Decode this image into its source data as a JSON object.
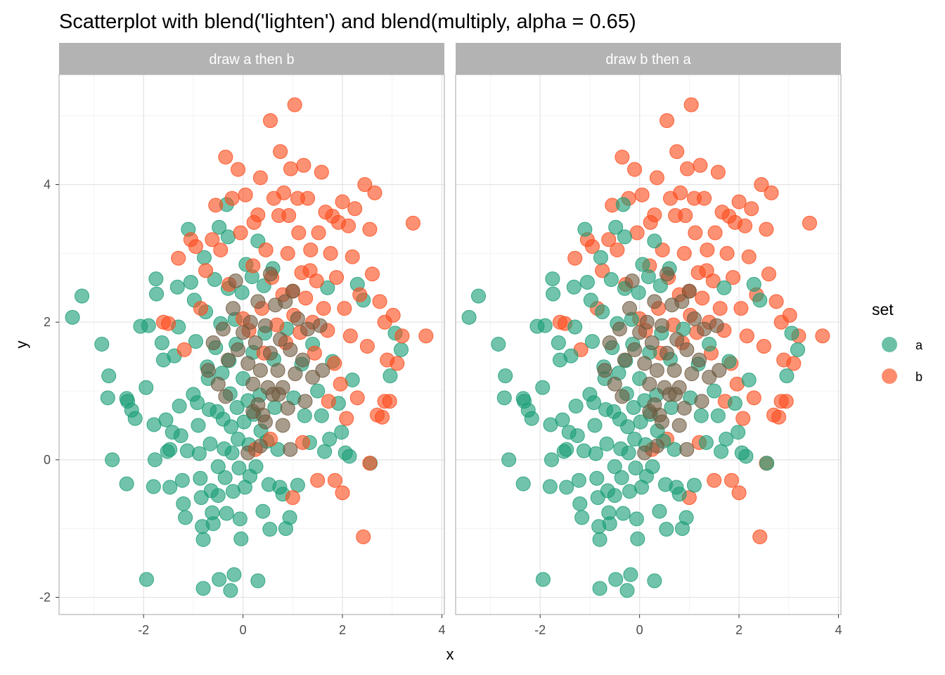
{
  "chart_data": {
    "type": "scatter",
    "title": "Scatterplot with blend('lighten') and blend(multiply, alpha = 0.65)",
    "xlabel": "x",
    "ylabel": "y",
    "xlim": [
      -3.7,
      4.05
    ],
    "ylim": [
      -2.25,
      5.6
    ],
    "x_ticks": [
      -2,
      0,
      2,
      4
    ],
    "y_ticks": [
      -2,
      0,
      2,
      4
    ],
    "grid": true,
    "facets": [
      "draw a then b",
      "draw b then a"
    ],
    "legend": {
      "title": "set",
      "position": "right",
      "entries": [
        {
          "label": "a",
          "color": "#1B9E77"
        },
        {
          "label": "b",
          "color": "#FC4E1F"
        }
      ]
    },
    "colors": {
      "a": "#1B9E77",
      "b": "#FC4E1F",
      "overlap": "#6E5A3F"
    },
    "series": [
      {
        "name": "a",
        "points": [
          [
            -3.43,
            2.07
          ],
          [
            -3.24,
            2.38
          ],
          [
            -2.84,
            1.68
          ],
          [
            -2.7,
            1.22
          ],
          [
            -2.72,
            0.9
          ],
          [
            -2.63,
            0.0
          ],
          [
            -2.34,
            0.89
          ],
          [
            -2.32,
            0.85
          ],
          [
            -2.24,
            0.72
          ],
          [
            -2.17,
            0.6
          ],
          [
            -2.34,
            -0.35
          ],
          [
            -2.06,
            1.94
          ],
          [
            -1.95,
            1.05
          ],
          [
            -1.94,
            -1.74
          ],
          [
            -1.9,
            1.95
          ],
          [
            -1.79,
            0.51
          ],
          [
            -1.77,
            0.0
          ],
          [
            -1.8,
            -0.39
          ],
          [
            -1.75,
            2.63
          ],
          [
            -1.74,
            2.41
          ],
          [
            -1.63,
            1.7
          ],
          [
            -1.6,
            1.45
          ],
          [
            -1.55,
            0.58
          ],
          [
            -1.52,
            0.12
          ],
          [
            -1.47,
            0.15
          ],
          [
            -1.47,
            -0.4
          ],
          [
            -1.42,
            0.4
          ],
          [
            -1.38,
            1.51
          ],
          [
            -1.32,
            2.51
          ],
          [
            -1.3,
            1.93
          ],
          [
            -1.28,
            0.78
          ],
          [
            -1.25,
            0.35
          ],
          [
            -1.22,
            -0.3
          ],
          [
            -1.2,
            -0.64
          ],
          [
            -1.16,
            -0.84
          ],
          [
            -1.12,
            0.13
          ],
          [
            -1.1,
            3.35
          ],
          [
            -1.05,
            2.58
          ],
          [
            -1.0,
            0.95
          ],
          [
            -0.98,
            2.32
          ],
          [
            -0.95,
            1.72
          ],
          [
            -0.92,
            0.83
          ],
          [
            -0.9,
            0.5
          ],
          [
            -0.88,
            0.09
          ],
          [
            -0.86,
            -0.27
          ],
          [
            -0.84,
            -0.55
          ],
          [
            -0.82,
            -0.97
          ],
          [
            -0.8,
            -1.16
          ],
          [
            -0.8,
            -1.87
          ],
          [
            -0.78,
            2.94
          ],
          [
            -0.75,
            2.15
          ],
          [
            -0.72,
            1.35
          ],
          [
            -0.7,
            1.18
          ],
          [
            -0.68,
            0.73
          ],
          [
            -0.66,
            0.23
          ],
          [
            -0.64,
            -0.45
          ],
          [
            -0.62,
            -0.77
          ],
          [
            -0.6,
            -0.93
          ],
          [
            -0.57,
            2.62
          ],
          [
            -0.55,
            1.63
          ],
          [
            -0.52,
            0.7
          ],
          [
            -0.5,
            -0.1
          ],
          [
            -0.5,
            -0.52
          ],
          [
            -0.48,
            3.38
          ],
          [
            -0.48,
            -1.74
          ],
          [
            -0.45,
            1.98
          ],
          [
            -0.42,
            1.26
          ],
          [
            -0.4,
            0.59
          ],
          [
            -0.38,
            0.16
          ],
          [
            -0.36,
            -0.26
          ],
          [
            -0.33,
            3.71
          ],
          [
            -0.33,
            -0.78
          ],
          [
            -0.3,
            3.24
          ],
          [
            -0.3,
            2.49
          ],
          [
            -0.28,
            1.44
          ],
          [
            -0.26,
            0.96
          ],
          [
            -0.25,
            -1.9
          ],
          [
            -0.24,
            0.48
          ],
          [
            -0.22,
            0.1
          ],
          [
            -0.2,
            -0.46
          ],
          [
            -0.18,
            -1.67
          ],
          [
            -0.16,
            2.04
          ],
          [
            -0.14,
            1.68
          ],
          [
            -0.12,
            0.76
          ],
          [
            -0.1,
            0.3
          ],
          [
            -0.08,
            -0.12
          ],
          [
            -0.06,
            -0.86
          ],
          [
            -0.04,
            -1.15
          ],
          [
            -0.02,
            2.43
          ],
          [
            0.0,
            1.18
          ],
          [
            0.02,
            0.55
          ],
          [
            0.04,
            -0.4
          ],
          [
            0.06,
            2.84
          ],
          [
            0.1,
            0.86
          ],
          [
            0.12,
            0.22
          ],
          [
            0.14,
            -0.24
          ],
          [
            0.18,
            2.66
          ],
          [
            0.2,
            1.56
          ],
          [
            0.22,
            0.66
          ],
          [
            0.26,
            -0.1
          ],
          [
            0.3,
            3.18
          ],
          [
            0.3,
            -1.76
          ],
          [
            0.34,
            0.94
          ],
          [
            0.36,
            0.42
          ],
          [
            0.4,
            -0.75
          ],
          [
            0.42,
            2.53
          ],
          [
            0.44,
            1.84
          ],
          [
            0.48,
            0.27
          ],
          [
            0.52,
            -0.36
          ],
          [
            0.54,
            -1.01
          ],
          [
            0.6,
            2.78
          ],
          [
            0.62,
            1.46
          ],
          [
            0.64,
            0.76
          ],
          [
            0.7,
            0.15
          ],
          [
            0.74,
            -0.4
          ],
          [
            0.8,
            -0.5
          ],
          [
            0.86,
            -1.0
          ],
          [
            0.88,
            1.9
          ],
          [
            0.94,
            -0.84
          ],
          [
            1.02,
            0.9
          ],
          [
            1.1,
            -0.37
          ],
          [
            1.18,
            1.39
          ],
          [
            1.24,
            0.64
          ],
          [
            1.34,
            0.25
          ],
          [
            1.4,
            1.68
          ],
          [
            1.5,
            1.0
          ],
          [
            1.58,
            0.64
          ],
          [
            1.64,
            0.12
          ],
          [
            1.74,
            0.3
          ],
          [
            1.8,
            1.43
          ],
          [
            1.92,
            0.82
          ],
          [
            1.98,
            0.4
          ],
          [
            2.06,
            0.1
          ],
          [
            2.14,
            0.05
          ],
          [
            2.2,
            1.16
          ],
          [
            2.3,
            2.55
          ],
          [
            2.42,
            2.32
          ],
          [
            2.56,
            -0.05
          ],
          [
            2.96,
            1.22
          ],
          [
            3.06,
            1.84
          ],
          [
            3.18,
            1.6
          ],
          [
            1.7,
            2.5
          ]
        ]
      },
      {
        "name": "b",
        "points": [
          [
            -1.6,
            2.0
          ],
          [
            -1.5,
            1.98
          ],
          [
            -1.3,
            2.93
          ],
          [
            -1.18,
            1.6
          ],
          [
            -1.05,
            3.2
          ],
          [
            -0.95,
            3.1
          ],
          [
            -0.85,
            2.2
          ],
          [
            -0.75,
            2.75
          ],
          [
            -0.62,
            3.2
          ],
          [
            -0.55,
            3.7
          ],
          [
            -0.45,
            3.05
          ],
          [
            -0.35,
            4.4
          ],
          [
            -0.28,
            2.55
          ],
          [
            -0.22,
            3.8
          ],
          [
            -0.1,
            4.22
          ],
          [
            -0.05,
            3.3
          ],
          [
            0.0,
            2.05
          ],
          [
            0.05,
            3.85
          ],
          [
            0.12,
            1.88
          ],
          [
            0.2,
            2.82
          ],
          [
            0.22,
            3.45
          ],
          [
            0.3,
            3.56
          ],
          [
            0.35,
            4.1
          ],
          [
            0.38,
            2.2
          ],
          [
            0.42,
            1.55
          ],
          [
            0.46,
            3.05
          ],
          [
            0.55,
            4.93
          ],
          [
            0.58,
            2.65
          ],
          [
            0.62,
            3.8
          ],
          [
            0.68,
            1.96
          ],
          [
            0.72,
            3.55
          ],
          [
            0.75,
            4.48
          ],
          [
            0.8,
            2.4
          ],
          [
            0.82,
            3.88
          ],
          [
            0.86,
            1.7
          ],
          [
            0.9,
            3.0
          ],
          [
            0.92,
            3.55
          ],
          [
            0.96,
            4.23
          ],
          [
            1.0,
            2.45
          ],
          [
            1.02,
            2.1
          ],
          [
            1.04,
            5.16
          ],
          [
            1.1,
            3.8
          ],
          [
            1.12,
            3.3
          ],
          [
            1.15,
            1.85
          ],
          [
            1.18,
            2.72
          ],
          [
            1.22,
            4.28
          ],
          [
            1.26,
            2.35
          ],
          [
            1.3,
            3.8
          ],
          [
            1.36,
            3.05
          ],
          [
            1.4,
            2.0
          ],
          [
            1.44,
            1.55
          ],
          [
            1.48,
            2.6
          ],
          [
            1.52,
            3.3
          ],
          [
            1.58,
            4.18
          ],
          [
            1.62,
            2.2
          ],
          [
            1.66,
            3.6
          ],
          [
            1.7,
            1.88
          ],
          [
            1.72,
            0.85
          ],
          [
            1.76,
            3.0
          ],
          [
            1.8,
            3.54
          ],
          [
            1.84,
            1.4
          ],
          [
            1.88,
            2.65
          ],
          [
            1.92,
            3.45
          ],
          [
            1.96,
            1.1
          ],
          [
            2.0,
            3.75
          ],
          [
            2.04,
            2.2
          ],
          [
            2.08,
            0.6
          ],
          [
            2.12,
            3.4
          ],
          [
            2.16,
            1.8
          ],
          [
            2.2,
            2.95
          ],
          [
            2.25,
            3.65
          ],
          [
            2.3,
            0.9
          ],
          [
            2.35,
            2.4
          ],
          [
            2.42,
            -1.12
          ],
          [
            2.45,
            4.0
          ],
          [
            2.5,
            1.65
          ],
          [
            2.55,
            3.35
          ],
          [
            2.6,
            2.7
          ],
          [
            2.65,
            3.88
          ],
          [
            2.7,
            0.65
          ],
          [
            2.75,
            2.3
          ],
          [
            2.8,
            0.62
          ],
          [
            2.85,
            2.0
          ],
          [
            2.9,
            1.45
          ],
          [
            2.95,
            0.85
          ],
          [
            3.02,
            2.1
          ],
          [
            3.1,
            1.4
          ],
          [
            3.2,
            1.8
          ],
          [
            3.42,
            3.44
          ],
          [
            3.68,
            1.8
          ],
          [
            1.0,
            -0.55
          ],
          [
            1.5,
            -0.3
          ],
          [
            1.85,
            -0.3
          ],
          [
            2.0,
            -0.48
          ],
          [
            2.55,
            -0.05
          ],
          [
            0.25,
            0.15
          ],
          [
            0.55,
            0.3
          ],
          [
            1.2,
            0.25
          ],
          [
            2.85,
            0.85
          ],
          [
            1.35,
            2.75
          ]
        ]
      },
      {
        "name": "overlap",
        "points": [
          [
            -0.6,
            1.7
          ],
          [
            -0.4,
            1.9
          ],
          [
            -0.3,
            1.45
          ],
          [
            -0.2,
            2.2
          ],
          [
            -0.1,
            1.6
          ],
          [
            0.0,
            1.85
          ],
          [
            0.1,
            1.4
          ],
          [
            0.15,
            2.0
          ],
          [
            0.2,
            1.1
          ],
          [
            0.25,
            1.7
          ],
          [
            0.3,
            0.8
          ],
          [
            0.35,
            1.3
          ],
          [
            0.4,
            0.65
          ],
          [
            0.45,
            1.95
          ],
          [
            0.5,
            1.05
          ],
          [
            0.55,
            1.55
          ],
          [
            0.6,
            0.95
          ],
          [
            0.65,
            2.25
          ],
          [
            0.7,
            1.3
          ],
          [
            0.75,
            1.75
          ],
          [
            0.8,
            1.05
          ],
          [
            0.85,
            2.3
          ],
          [
            0.9,
            0.75
          ],
          [
            0.95,
            1.6
          ],
          [
            1.05,
            1.25
          ],
          [
            1.1,
            2.05
          ],
          [
            1.2,
            1.45
          ],
          [
            1.3,
            1.9
          ],
          [
            1.4,
            1.2
          ],
          [
            1.55,
            1.95
          ],
          [
            1.6,
            1.3
          ],
          [
            -0.7,
            1.3
          ],
          [
            -0.5,
            1.1
          ],
          [
            0.2,
            0.7
          ],
          [
            0.45,
            0.55
          ],
          [
            1.0,
            2.45
          ],
          [
            -0.15,
            2.6
          ],
          [
            0.55,
            2.7
          ],
          [
            0.35,
            0.2
          ],
          [
            0.1,
            0.1
          ],
          [
            0.72,
            0.95
          ],
          [
            -0.35,
            0.92
          ],
          [
            1.25,
            0.85
          ],
          [
            0.8,
            0.5
          ],
          [
            0.3,
            2.3
          ],
          [
            0.95,
            0.15
          ]
        ]
      }
    ]
  }
}
